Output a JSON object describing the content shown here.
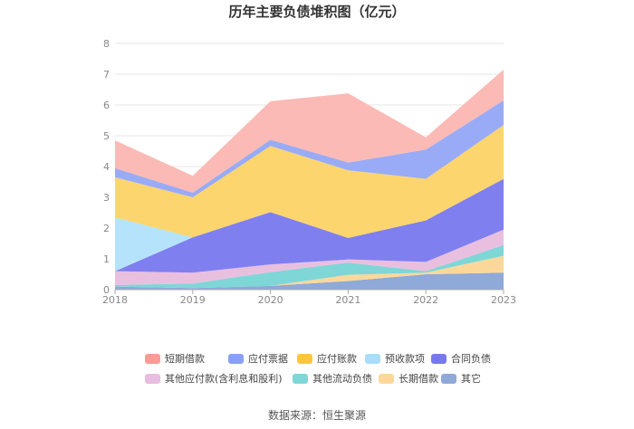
{
  "chart_data": {
    "type": "area",
    "stacked": true,
    "title": "历年主要负债堆积图（亿元）",
    "xlabel": "",
    "ylabel": "",
    "categories": [
      "2018",
      "2019",
      "2020",
      "2021",
      "2022",
      "2023"
    ],
    "ylim": [
      0,
      8
    ],
    "yticks": [
      "0",
      "1",
      "2",
      "3",
      "4",
      "5",
      "6",
      "7",
      "8"
    ],
    "grid": true,
    "legend_position": "bottom",
    "series": [
      {
        "name": "其它",
        "color": "#8fa9d8",
        "values": [
          0.1,
          0.05,
          0.12,
          0.28,
          0.5,
          0.55
        ]
      },
      {
        "name": "长期借款",
        "color": "#fbd89a",
        "values": [
          0.0,
          0.0,
          0.0,
          0.2,
          0.05,
          0.55
        ]
      },
      {
        "name": "其他流动负债",
        "color": "#7fd6d6",
        "values": [
          0.05,
          0.15,
          0.45,
          0.4,
          0.05,
          0.35
        ]
      },
      {
        "name": "其他应付款(含利息和股利)",
        "color": "#e9bfe0",
        "values": [
          0.45,
          0.35,
          0.25,
          0.1,
          0.3,
          0.5
        ]
      },
      {
        "name": "合同负债",
        "color": "#7f7ff0",
        "values": [
          0.0,
          1.15,
          1.7,
          0.7,
          1.35,
          1.65
        ]
      },
      {
        "name": "预收款项",
        "color": "#b5e3fb",
        "values": [
          1.75,
          0.0,
          0.0,
          0.0,
          0.0,
          0.0
        ]
      },
      {
        "name": "应付账款",
        "color": "#fdd56e",
        "values": [
          1.3,
          1.3,
          2.15,
          2.2,
          1.35,
          1.75
        ]
      },
      {
        "name": "应付票据",
        "color": "#99abf6",
        "values": [
          0.3,
          0.15,
          0.2,
          0.25,
          0.95,
          0.8
        ]
      },
      {
        "name": "短期借款",
        "color": "#fbbab5",
        "values": [
          0.9,
          0.55,
          1.25,
          2.25,
          0.4,
          1.0
        ]
      }
    ]
  },
  "legend": {
    "items": [
      {
        "name": "短期借款",
        "color": "#fb9b96"
      },
      {
        "name": "应付票据",
        "color": "#8aa0f8"
      },
      {
        "name": "应付账款",
        "color": "#fdc63c"
      },
      {
        "name": "预收款项",
        "color": "#a8def9"
      },
      {
        "name": "合同负债",
        "color": "#7878ee"
      },
      {
        "name": "其他应付款(含利息和股利)",
        "color": "#e8bde0"
      },
      {
        "name": "其他流动负债",
        "color": "#7fd6d6"
      },
      {
        "name": "长期借款",
        "color": "#fbd89a"
      },
      {
        "name": "其它",
        "color": "#8fa9d8"
      }
    ]
  },
  "footer": {
    "source": "数据来源：恒生聚源"
  }
}
